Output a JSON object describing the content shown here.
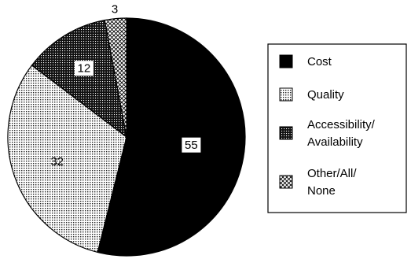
{
  "chart_data": {
    "type": "pie",
    "start_angle_deg": 0,
    "direction": "clockwise",
    "slices": [
      {
        "label": "Cost",
        "value": 55,
        "pattern": "solid"
      },
      {
        "label": "Quality",
        "value": 32,
        "pattern": "light-dots"
      },
      {
        "label": "Accessibility/Availability",
        "value": 12,
        "pattern": "dark-dots"
      },
      {
        "label": "Other/All/None",
        "value": 3,
        "pattern": "crosshatch"
      }
    ],
    "legend": {
      "position": "right",
      "entries": [
        {
          "lines": [
            "Cost"
          ]
        },
        {
          "lines": [
            "Quality"
          ]
        },
        {
          "lines": [
            "Accessibility/",
            "Availability"
          ]
        },
        {
          "lines": [
            "Other/All/",
            "None"
          ]
        }
      ]
    },
    "colors": {
      "ink": "#000000",
      "paper": "#ffffff"
    }
  }
}
